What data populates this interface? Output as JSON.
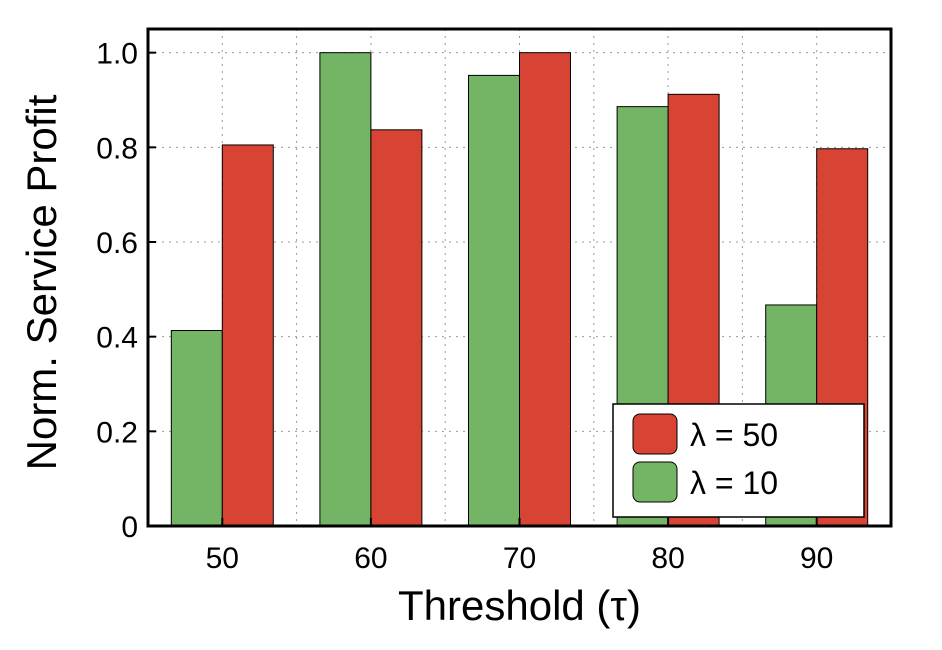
{
  "chart_data": {
    "type": "bar",
    "categories": [
      "50",
      "60",
      "70",
      "80",
      "90"
    ],
    "series": [
      {
        "name": "λ = 10",
        "color": "#74b565",
        "values": [
          0.413,
          1.0,
          0.952,
          0.886,
          0.467
        ]
      },
      {
        "name": "λ = 50",
        "color": "#d84434",
        "values": [
          0.805,
          0.837,
          1.0,
          0.912,
          0.797
        ]
      }
    ],
    "xlabel": "Threshold (τ)",
    "ylabel": "Norm. Service Profit",
    "ylim": [
      0,
      1.05
    ],
    "yticks": [
      {
        "value": 0,
        "label": "0"
      },
      {
        "value": 0.2,
        "label": "0.2"
      },
      {
        "value": 0.4,
        "label": "0.4"
      },
      {
        "value": 0.6,
        "label": "0.6"
      },
      {
        "value": 0.8,
        "label": "0.8"
      },
      {
        "value": 1.0,
        "label": "1.0"
      }
    ],
    "grid": true,
    "legend": {
      "position": "bottom-right",
      "entries": [
        {
          "label": "λ = 50",
          "color": "#d84434"
        },
        {
          "label": "λ = 10",
          "color": "#74b565"
        }
      ]
    }
  }
}
